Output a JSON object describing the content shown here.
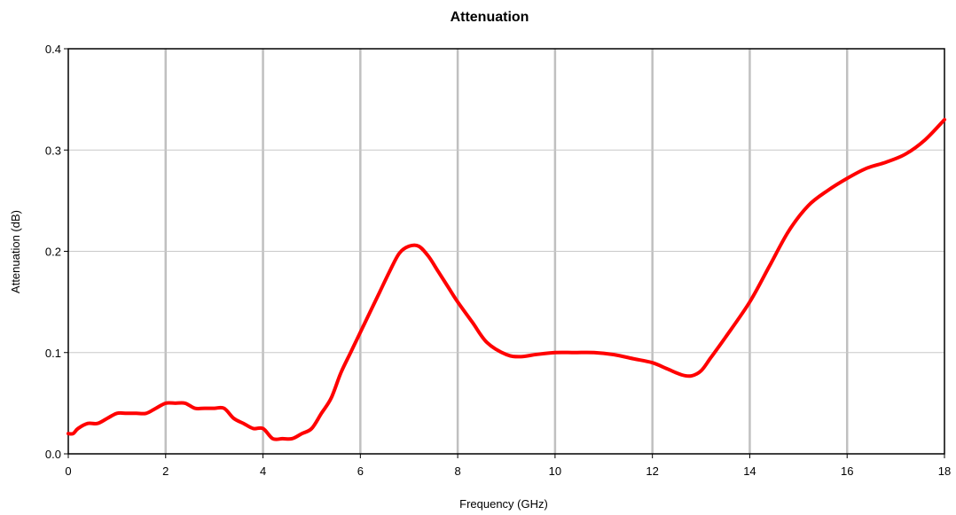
{
  "chart_data": {
    "type": "line",
    "title": "Attenuation",
    "xlabel": "Frequency (GHz)",
    "ylabel": "Attenuation (dB)",
    "xlim": [
      0,
      18
    ],
    "ylim": [
      0,
      0.4
    ],
    "x_ticks": [
      "0",
      "2",
      "4",
      "6",
      "8",
      "10",
      "12",
      "14",
      "16",
      "18"
    ],
    "y_ticks": [
      "0.0",
      "0.1",
      "0.2",
      "0.3",
      "0.4"
    ],
    "grid": {
      "vertical": true,
      "horizontal": true
    },
    "legend": "none",
    "series": [
      {
        "color": "#ff0000",
        "x": [
          0,
          0.1,
          0.2,
          0.4,
          0.6,
          0.8,
          1.0,
          1.2,
          1.4,
          1.6,
          1.8,
          2.0,
          2.2,
          2.4,
          2.6,
          2.8,
          3.0,
          3.2,
          3.4,
          3.6,
          3.8,
          4.0,
          4.2,
          4.4,
          4.6,
          4.8,
          5.0,
          5.2,
          5.4,
          5.6,
          5.8,
          6.0,
          6.2,
          6.4,
          6.6,
          6.8,
          7.0,
          7.2,
          7.4,
          7.6,
          7.8,
          8.0,
          8.3,
          8.6,
          9.0,
          9.3,
          9.6,
          10.0,
          10.4,
          10.8,
          11.2,
          11.6,
          12.0,
          12.3,
          12.6,
          12.8,
          13.0,
          13.2,
          13.5,
          14.0,
          14.4,
          14.8,
          15.2,
          15.6,
          16.0,
          16.4,
          16.8,
          17.2,
          17.6,
          18.0
        ],
        "y": [
          0.02,
          0.02,
          0.025,
          0.03,
          0.03,
          0.035,
          0.04,
          0.04,
          0.04,
          0.04,
          0.045,
          0.05,
          0.05,
          0.05,
          0.045,
          0.045,
          0.045,
          0.045,
          0.035,
          0.03,
          0.025,
          0.025,
          0.015,
          0.015,
          0.015,
          0.02,
          0.025,
          0.04,
          0.055,
          0.08,
          0.1,
          0.12,
          0.14,
          0.16,
          0.18,
          0.198,
          0.205,
          0.205,
          0.195,
          0.18,
          0.165,
          0.15,
          0.13,
          0.11,
          0.098,
          0.096,
          0.098,
          0.1,
          0.1,
          0.1,
          0.098,
          0.094,
          0.09,
          0.084,
          0.078,
          0.077,
          0.082,
          0.095,
          0.115,
          0.15,
          0.185,
          0.22,
          0.245,
          0.26,
          0.272,
          0.282,
          0.288,
          0.296,
          0.31,
          0.33
        ]
      }
    ]
  }
}
